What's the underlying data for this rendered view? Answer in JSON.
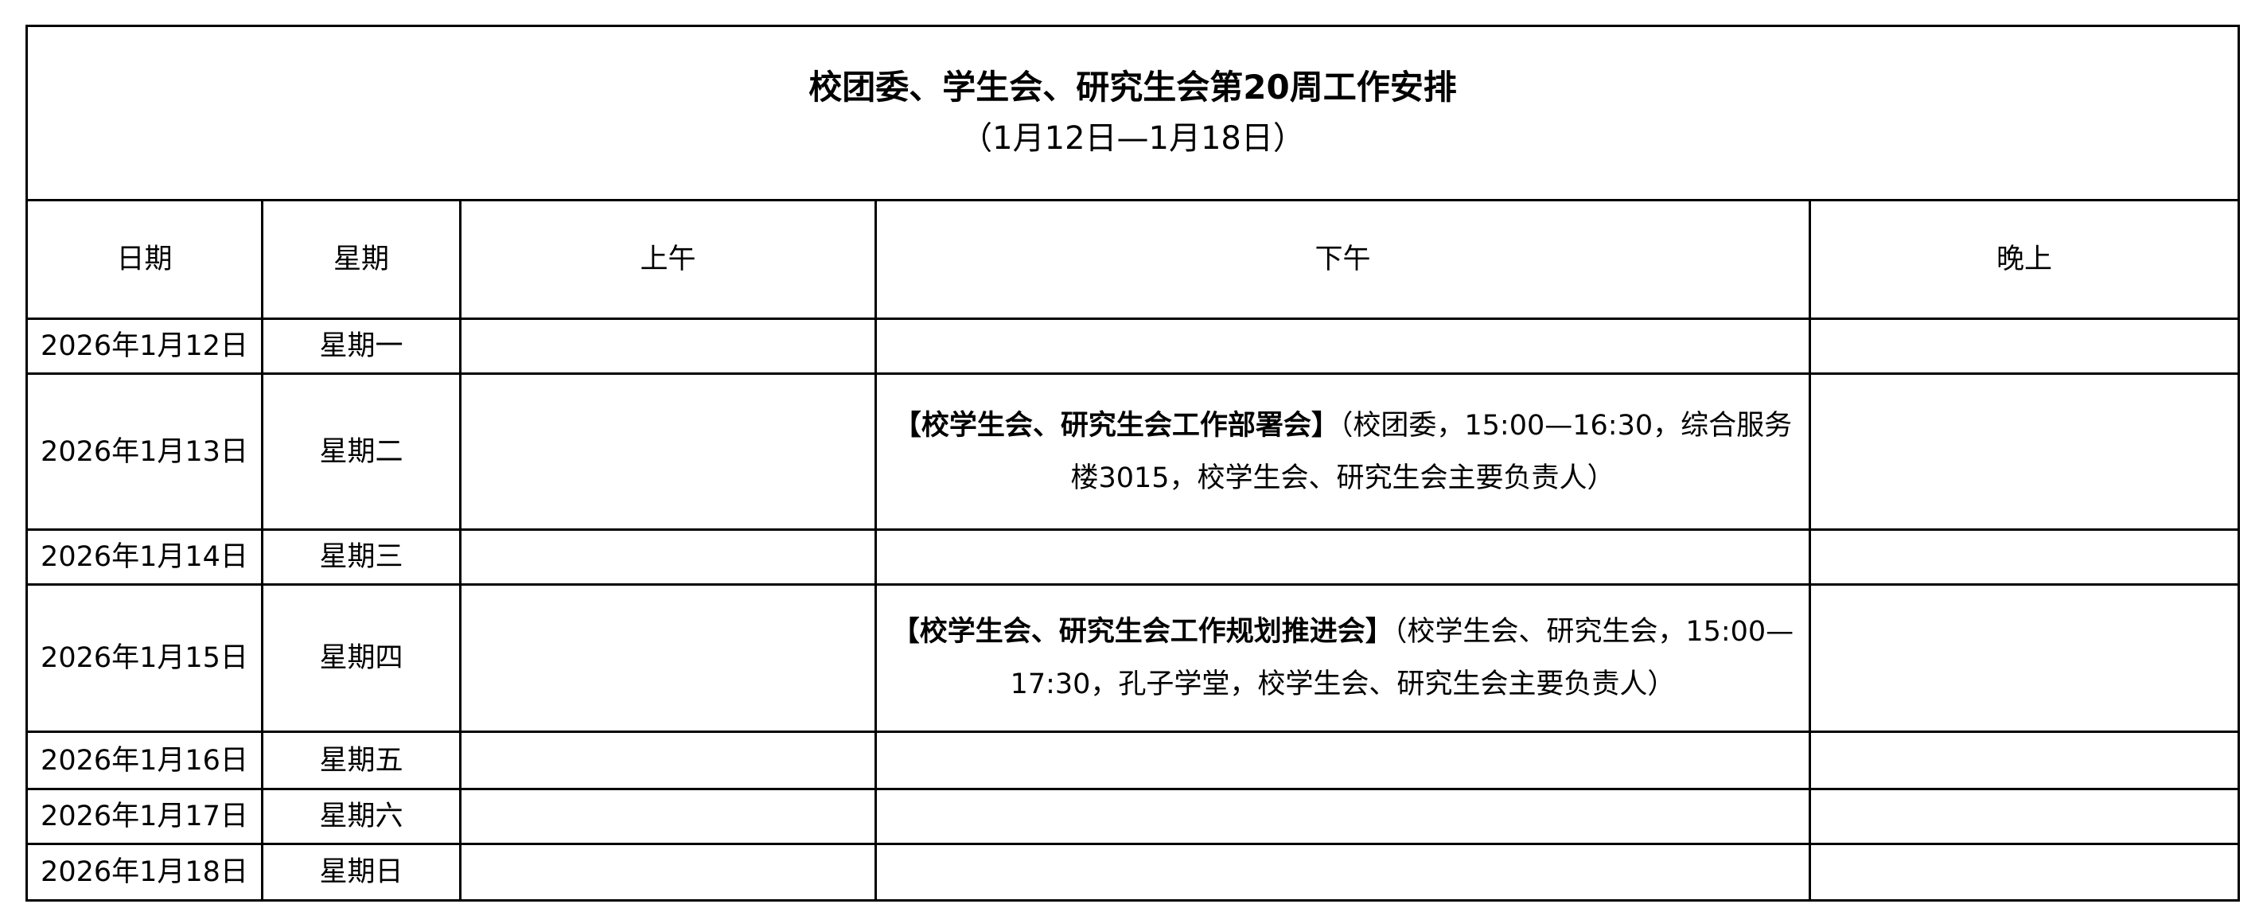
{
  "title": "校团委、学生会、研究生会第20周工作安排",
  "subtitle": "（1月12日—1月18日）",
  "headers": [
    "日期",
    "星期",
    "上午",
    "下午",
    "晚上"
  ],
  "rows": [
    {
      "date": "2026年1月12日",
      "weekday": "星期一",
      "morning": "",
      "afternoon_title": "",
      "afternoon_detail": "",
      "evening": ""
    },
    {
      "date": "2026年1月13日",
      "weekday": "星期二",
      "morning": "",
      "afternoon_title": "【校学生会、研究生会工作部署会】",
      "afternoon_detail": "（校团委，15:00—16:30，综合服务楼3015，校学生会、研究生会主要负责人）",
      "evening": ""
    },
    {
      "date": "2026年1月14日",
      "weekday": "星期三",
      "morning": "",
      "afternoon_title": "",
      "afternoon_detail": "",
      "evening": ""
    },
    {
      "date": "2026年1月15日",
      "weekday": "星期四",
      "morning": "",
      "afternoon_title": "【校学生会、研究生会工作规划推进会】",
      "afternoon_detail": "（校学生会、研究生会，15:00—17:30，孔子学堂，校学生会、研究生会主要负责人）",
      "evening": ""
    },
    {
      "date": "2026年1月16日",
      "weekday": "星期五",
      "morning": "",
      "afternoon_title": "",
      "afternoon_detail": "",
      "evening": ""
    },
    {
      "date": "2026年1月17日",
      "weekday": "星期六",
      "morning": "",
      "afternoon_title": "",
      "afternoon_detail": "",
      "evening": ""
    },
    {
      "date": "2026年1月18日",
      "weekday": "星期日",
      "morning": "",
      "afternoon_title": "",
      "afternoon_detail": "",
      "evening": ""
    }
  ]
}
